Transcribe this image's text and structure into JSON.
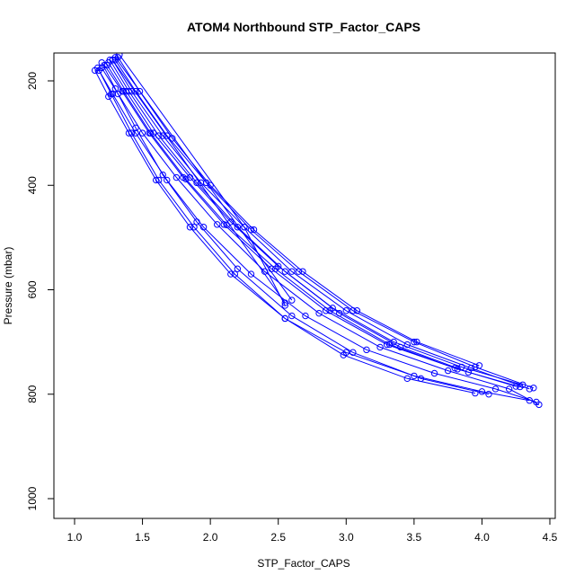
{
  "chart_data": {
    "type": "line",
    "title": "ATOM4 Northbound STP_Factor_CAPS",
    "xlabel": "STP_Factor_CAPS",
    "ylabel": "Pressure (mbar)",
    "xlim": [
      1.0,
      4.5
    ],
    "ylim": [
      150,
      1030
    ],
    "y_reversed": true,
    "grid": false,
    "legend": "none",
    "x_ticks": [
      "1.0",
      "1.5",
      "2.0",
      "2.5",
      "3.0",
      "3.5",
      "4.0",
      "4.5"
    ],
    "y_ticks": [
      "200",
      "400",
      "600",
      "800",
      "1000"
    ],
    "x_tick_values": [
      1.0,
      1.5,
      2.0,
      2.5,
      3.0,
      3.5,
      4.0,
      4.5
    ],
    "y_tick_values": [
      200,
      400,
      600,
      800,
      1000
    ],
    "series_color": "#0000ff",
    "marker": "open-circle",
    "series": [
      {
        "x": [
          1.15,
          1.25,
          1.4,
          1.6,
          1.85,
          2.15,
          2.55,
          3.0,
          3.5,
          4.0,
          4.35
        ],
        "y": [
          180,
          230,
          300,
          390,
          480,
          570,
          655,
          720,
          765,
          795,
          812
        ]
      },
      {
        "x": [
          1.18,
          1.28,
          1.45,
          1.68,
          1.95,
          2.3,
          2.7,
          3.15,
          3.65,
          4.1,
          4.4
        ],
        "y": [
          180,
          225,
          300,
          390,
          480,
          570,
          650,
          715,
          760,
          790,
          815
        ]
      },
      {
        "x": [
          1.2,
          1.32,
          1.5,
          1.75,
          2.05,
          2.4,
          2.8,
          3.25,
          3.75,
          4.2,
          4.42
        ],
        "y": [
          175,
          225,
          300,
          385,
          475,
          565,
          645,
          710,
          755,
          790,
          820
        ]
      },
      {
        "x": [
          1.22,
          1.35,
          1.55,
          1.8,
          2.1,
          2.45,
          2.85,
          3.3,
          3.8,
          4.25
        ],
        "y": [
          170,
          220,
          300,
          385,
          475,
          560,
          640,
          705,
          750,
          785
        ]
      },
      {
        "x": [
          1.25,
          1.38,
          1.58,
          1.85,
          2.15,
          2.5,
          2.9,
          3.35,
          3.85,
          4.3
        ],
        "y": [
          165,
          220,
          300,
          385,
          470,
          555,
          635,
          700,
          748,
          782
        ]
      },
      {
        "x": [
          1.2,
          1.3,
          1.45,
          1.65,
          1.9,
          2.2,
          2.6,
          3.05,
          3.55,
          4.05
        ],
        "y": [
          165,
          215,
          290,
          380,
          470,
          560,
          650,
          720,
          770,
          800
        ]
      },
      {
        "x": [
          1.26,
          1.4,
          1.62,
          1.9,
          2.2,
          2.55,
          2.95,
          3.4,
          3.9
        ],
        "y": [
          160,
          220,
          305,
          395,
          480,
          565,
          645,
          710,
          758
        ]
      },
      {
        "x": [
          1.28,
          1.42,
          1.65,
          1.93,
          2.25,
          2.6,
          3.0,
          3.45,
          3.92,
          4.35
        ],
        "y": [
          160,
          220,
          305,
          395,
          480,
          565,
          640,
          705,
          750,
          790
        ]
      },
      {
        "x": [
          1.3,
          1.45,
          1.68,
          1.97,
          2.3,
          2.65,
          3.05,
          3.5,
          3.95,
          4.38
        ],
        "y": [
          160,
          220,
          305,
          395,
          485,
          565,
          640,
          700,
          748,
          788
        ]
      },
      {
        "x": [
          1.17,
          1.27,
          1.42,
          1.62,
          1.88,
          2.18,
          2.55,
          2.98,
          3.45,
          3.95
        ],
        "y": [
          175,
          225,
          300,
          390,
          480,
          570,
          655,
          725,
          770,
          798
        ]
      },
      {
        "x": [
          1.32,
          1.48,
          1.72,
          2.0,
          2.32,
          2.68,
          3.08,
          3.52,
          3.98
        ],
        "y": [
          155,
          220,
          310,
          400,
          485,
          565,
          640,
          700,
          745
        ]
      },
      {
        "x": [
          1.24,
          1.36,
          1.56,
          1.82,
          2.12,
          2.48,
          2.88,
          3.32,
          3.82,
          4.28
        ],
        "y": [
          170,
          220,
          300,
          388,
          476,
          560,
          640,
          705,
          752,
          786
        ]
      },
      {
        "x": [
          1.28,
          2.55
        ],
        "y": [
          160,
          625
        ]
      },
      {
        "x": [
          1.3,
          2.6
        ],
        "y": [
          155,
          620
        ]
      },
      {
        "x": [
          1.33,
          2.25,
          2.55
        ],
        "y": [
          150,
          480,
          630
        ]
      }
    ]
  }
}
